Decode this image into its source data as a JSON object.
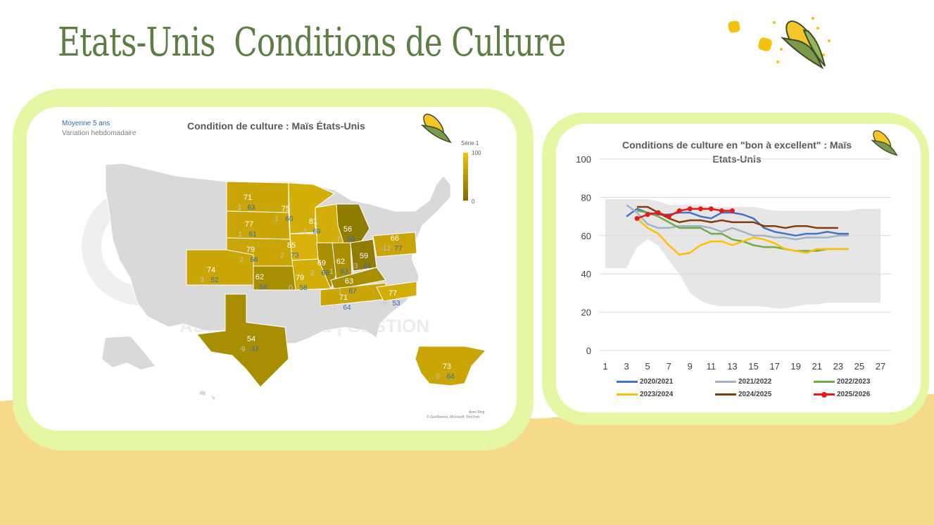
{
  "header": {
    "title_part1": "Etats-Unis",
    "title_part2": "Conditions de Culture"
  },
  "map_panel": {
    "title": "Condition de culture : Maïs États-Unis",
    "subtitle_line1": "Moyenne 5 ans",
    "subtitle_line2": "Variation hebdomadaire",
    "legend_title": "Série 1",
    "legend_max": "100",
    "legend_min": "0",
    "attribution_line1": "Avec Bing",
    "attribution_line2": "© GeoNames, Microsoft, TomTom",
    "watermark": "AUDIT | CONSEIL | GESTION",
    "colors": {
      "high": "#f2c20c",
      "low": "#7c6d00",
      "avg_label": "#2e6db4",
      "var_label": "#c8c8c8",
      "base_map": "#d9d9d9"
    },
    "states": [
      {
        "value": "71",
        "variation": "-1",
        "average": "63"
      },
      {
        "value": "75",
        "variation": "1",
        "average": "60"
      },
      {
        "value": "77",
        "variation": "1",
        "average": "61"
      },
      {
        "value": "81",
        "variation": "-1",
        "average": "69"
      },
      {
        "value": "56",
        "variation": "7",
        "average": "58"
      },
      {
        "value": "85",
        "variation": "2",
        "average": "73"
      },
      {
        "value": "79",
        "variation": "2",
        "average": "66"
      },
      {
        "value": "74",
        "variation": "3",
        "average": "52"
      },
      {
        "value": "62",
        "variation": "-4",
        "average": "54"
      },
      {
        "value": "69",
        "variation": "2",
        "average": "66"
      },
      {
        "value": "62",
        "variation": "1",
        "average": "63"
      },
      {
        "value": "59",
        "variation": "-3",
        "average": "61"
      },
      {
        "value": "63",
        "variation": "1",
        "average": "67"
      },
      {
        "value": "66",
        "variation": "-12",
        "average": "77"
      },
      {
        "value": "79",
        "variation": "0",
        "average": "58"
      },
      {
        "value": "71",
        "variation": "1",
        "average": "64"
      },
      {
        "value": "77",
        "variation": "-8",
        "average": "53"
      },
      {
        "value": "54",
        "variation": "-9",
        "average": "47"
      },
      {
        "value": "73",
        "variation": "0",
        "average": "64"
      }
    ]
  },
  "chart_data": {
    "type": "line",
    "title": "Conditions de culture en \"bon à excellent\" : Maïs Etats-Unis",
    "xlabel": "",
    "ylabel": "",
    "ylim": [
      0,
      100
    ],
    "xlim": [
      1,
      28
    ],
    "x_ticks": [
      1,
      3,
      5,
      7,
      9,
      11,
      13,
      15,
      17,
      19,
      21,
      23,
      25,
      27
    ],
    "y_ticks": [
      0,
      20,
      40,
      60,
      80,
      100
    ],
    "grid": "horizontal",
    "legend_position": "bottom",
    "range_band": {
      "color": "#e6e6e6",
      "x": [
        1,
        2,
        3,
        4,
        5,
        6,
        7,
        8,
        9,
        10,
        11,
        12,
        13,
        14,
        15,
        16,
        17,
        18,
        19,
        20,
        21,
        22,
        23,
        24,
        25,
        26,
        27
      ],
      "upper": [
        79,
        79,
        79,
        79,
        79,
        78,
        76,
        76,
        76,
        76,
        75,
        75,
        75,
        75,
        75,
        74,
        73,
        73,
        73,
        73,
        73,
        73,
        73,
        73,
        74,
        74,
        74
      ],
      "lower": [
        43,
        43,
        43,
        54,
        58,
        55,
        47,
        40,
        30,
        26,
        24,
        23,
        23,
        23,
        23,
        23,
        22,
        22,
        23,
        24,
        24,
        25,
        25,
        25,
        25,
        25,
        25
      ]
    },
    "series": [
      {
        "name": "2020/2021",
        "color": "#4472c4",
        "markers": false,
        "x": [
          3,
          4,
          5,
          6,
          7,
          8,
          9,
          10,
          11,
          12,
          13,
          14,
          15,
          16,
          17,
          18,
          19,
          20,
          21,
          22,
          23,
          24
        ],
        "values": [
          70,
          74,
          72,
          71,
          71,
          72,
          72,
          70,
          69,
          72,
          72,
          71,
          69,
          64,
          62,
          61,
          60,
          61,
          61,
          62,
          61,
          61
        ]
      },
      {
        "name": "2021/2022",
        "color": "#a5b2c6",
        "markers": false,
        "x": [
          3,
          4,
          5,
          6,
          7,
          8,
          9,
          10,
          11,
          12,
          13,
          14,
          15,
          16,
          17,
          18,
          19,
          20,
          21,
          22,
          23,
          24
        ],
        "values": [
          76,
          72,
          66,
          64,
          64,
          65,
          65,
          65,
          64,
          62,
          64,
          62,
          60,
          60,
          59,
          59,
          58,
          59,
          59,
          59,
          60,
          60
        ]
      },
      {
        "name": "2022/2023",
        "color": "#70ad47",
        "markers": false,
        "x": [
          4,
          5,
          6,
          7,
          8,
          9,
          10,
          11,
          12,
          13,
          14,
          15,
          16,
          17,
          18,
          19,
          20,
          21,
          22,
          23,
          24
        ],
        "values": [
          73,
          72,
          70,
          67,
          64,
          64,
          64,
          61,
          61,
          58,
          57,
          55,
          54,
          54,
          53,
          52,
          52,
          52,
          53,
          53,
          53
        ]
      },
      {
        "name": "2023/2024",
        "color": "#ffc000",
        "markers": false,
        "x": [
          4,
          5,
          6,
          7,
          8,
          9,
          10,
          11,
          12,
          13,
          14,
          15,
          16,
          17,
          18,
          19,
          20,
          21,
          22,
          23,
          24
        ],
        "values": [
          69,
          64,
          61,
          55,
          50,
          51,
          55,
          57,
          57,
          55,
          57,
          59,
          58,
          56,
          53,
          52,
          51,
          53,
          53,
          53,
          53
        ]
      },
      {
        "name": "2024/2025",
        "color": "#843c0c",
        "markers": false,
        "x": [
          4,
          5,
          6,
          7,
          8,
          9,
          10,
          11,
          12,
          13,
          14,
          15,
          16,
          17,
          18,
          19,
          20,
          21,
          22,
          23
        ],
        "values": [
          75,
          75,
          72,
          69,
          67,
          68,
          68,
          67,
          68,
          67,
          67,
          67,
          65,
          65,
          64,
          65,
          65,
          64,
          64,
          64
        ]
      },
      {
        "name": "2025/2026",
        "color": "#e41a1c",
        "markers": true,
        "x": [
          4,
          5,
          6,
          7,
          8,
          9,
          10,
          11,
          12,
          13
        ],
        "values": [
          69,
          71,
          72,
          70,
          73,
          74,
          74,
          74,
          73,
          73
        ]
      }
    ]
  }
}
